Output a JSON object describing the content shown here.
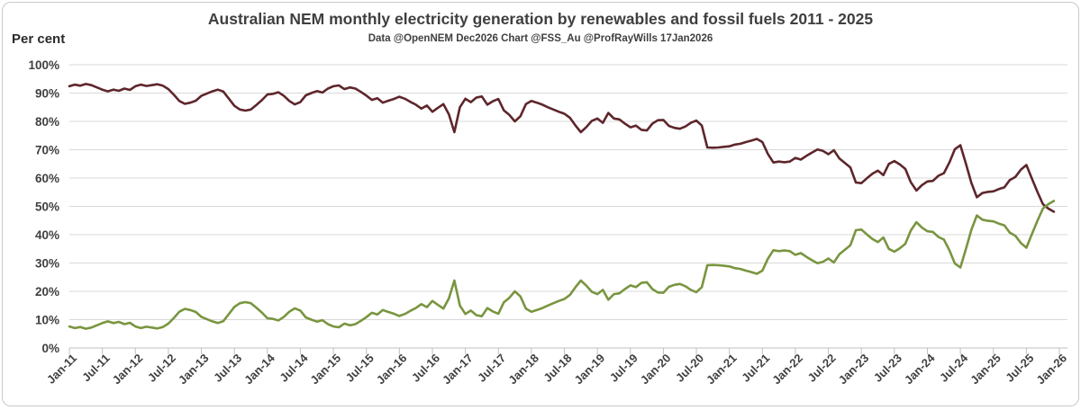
{
  "header": {
    "title": "Australian NEM monthly electricity generation by renewables and fossil fuels 2011 - 2025",
    "subtitle": "Data @OpenNEM Dec2026  Chart @FSS_Au @ProfRayWills 17Jan2026"
  },
  "axes": {
    "y_unit_label": "Per cent"
  },
  "colors": {
    "fossil_line": "#5e262b",
    "renewables_line": "#79953f",
    "gridline": "#d9d9d9",
    "axis_line": "#bfbfbf",
    "tick_label": "#404040"
  },
  "chart_data": {
    "type": "line",
    "title": "Australian NEM monthly electricity generation by renewables and fossil fuels 2011 - 2025",
    "subtitle": "Data @OpenNEM Dec2026  Chart @FSS_Au @ProfRayWills 17Jan2026",
    "ylabel": "Per cent",
    "ylim": [
      0,
      100
    ],
    "grid": "horizontal",
    "legend": "none",
    "x_start_month": "Jan-2011",
    "x_end_month": "Dec-2025",
    "x_tick_labels": [
      "Jan-11",
      "Jul-11",
      "Jan-12",
      "Jul-12",
      "Jan-13",
      "Jul-13",
      "Jan-14",
      "Jul-14",
      "Jan-15",
      "Jul-15",
      "Jan-16",
      "Jul-16",
      "Jan-17",
      "Jul-17",
      "Jan-18",
      "Jul-18",
      "Jan-19",
      "Jul-19",
      "Jan-20",
      "Jul-20",
      "Jan-21",
      "Jul-21",
      "Jan-22",
      "Jul-22",
      "Jan-23",
      "Jul-23",
      "Jan-24",
      "Jul-24",
      "Jan-25",
      "Jul-25",
      "Jan-26"
    ],
    "y_tick_labels": [
      "0%",
      "10%",
      "20%",
      "30%",
      "40%",
      "50%",
      "60%",
      "70%",
      "80%",
      "90%",
      "100%"
    ],
    "series": [
      {
        "name": "Fossil fuels",
        "color": "#5e262b",
        "values": [
          92.4,
          93.0,
          92.6,
          93.2,
          92.8,
          92.0,
          91.2,
          90.6,
          91.2,
          90.8,
          91.6,
          91.1,
          92.4,
          93.0,
          92.5,
          92.8,
          93.1,
          92.6,
          91.4,
          89.4,
          87.2,
          86.2,
          86.6,
          87.3,
          89.0,
          89.8,
          90.6,
          91.2,
          90.5,
          88.0,
          85.5,
          84.2,
          83.8,
          84.2,
          85.8,
          87.5,
          89.5,
          89.7,
          90.3,
          89.0,
          87.2,
          86.0,
          86.8,
          89.2,
          90.0,
          90.7,
          90.2,
          91.6,
          92.4,
          92.7,
          91.4,
          92.0,
          91.6,
          90.4,
          89.1,
          87.6,
          88.2,
          86.6,
          87.3,
          87.9,
          88.7,
          88.0,
          86.9,
          85.9,
          84.5,
          85.6,
          83.4,
          84.8,
          86.1,
          82.5,
          76.2,
          85.0,
          88.0,
          86.8,
          88.4,
          88.8,
          85.9,
          87.1,
          87.9,
          83.9,
          82.3,
          80.0,
          81.8,
          86.1,
          87.2,
          86.6,
          85.9,
          85.0,
          84.2,
          83.4,
          82.7,
          81.3,
          78.6,
          76.2,
          78.0,
          80.2,
          81.0,
          79.5,
          83.0,
          81.0,
          80.7,
          79.2,
          77.9,
          78.5,
          77.0,
          76.8,
          79.2,
          80.4,
          80.5,
          78.4,
          77.7,
          77.4,
          78.2,
          79.5,
          80.3,
          78.5,
          70.8,
          70.7,
          70.8,
          71.0,
          71.2,
          71.8,
          72.1,
          72.7,
          73.2,
          73.8,
          72.7,
          68.5,
          65.5,
          65.8,
          65.6,
          65.8,
          67.1,
          66.5,
          67.8,
          69.0,
          70.1,
          69.6,
          68.4,
          69.8,
          66.9,
          65.3,
          63.7,
          58.4,
          58.2,
          59.9,
          61.5,
          62.6,
          61.0,
          65.0,
          66.0,
          64.8,
          63.2,
          58.5,
          55.6,
          57.5,
          58.8,
          59.0,
          60.8,
          61.7,
          65.5,
          70.2,
          71.6,
          65.1,
          58.3,
          53.2,
          54.7,
          55.1,
          55.3,
          56.1,
          56.7,
          59.3,
          60.4,
          63.0,
          64.6,
          59.8,
          55.1,
          50.8,
          49.2,
          48.1
        ]
      },
      {
        "name": "Renewables",
        "color": "#79953f",
        "values": [
          7.6,
          7.0,
          7.4,
          6.8,
          7.2,
          8.0,
          8.8,
          9.4,
          8.8,
          9.2,
          8.4,
          8.9,
          7.6,
          7.0,
          7.5,
          7.2,
          6.9,
          7.4,
          8.6,
          10.6,
          12.8,
          13.8,
          13.4,
          12.7,
          11.0,
          10.2,
          9.4,
          8.8,
          9.5,
          12.0,
          14.5,
          15.8,
          16.2,
          15.8,
          14.2,
          12.5,
          10.5,
          10.3,
          9.7,
          11.0,
          12.8,
          14.0,
          13.2,
          10.8,
          10.0,
          9.3,
          9.8,
          8.4,
          7.6,
          7.3,
          8.6,
          8.0,
          8.4,
          9.6,
          10.9,
          12.4,
          11.8,
          13.4,
          12.7,
          12.1,
          11.3,
          12.0,
          13.1,
          14.1,
          15.5,
          14.4,
          16.6,
          15.2,
          13.9,
          17.5,
          23.8,
          15.0,
          12.0,
          13.2,
          11.6,
          11.2,
          14.1,
          12.9,
          12.1,
          16.1,
          17.7,
          20.0,
          18.2,
          13.9,
          12.8,
          13.4,
          14.1,
          15.0,
          15.8,
          16.6,
          17.3,
          18.7,
          21.4,
          23.8,
          22.0,
          19.8,
          19.0,
          20.5,
          17.0,
          19.0,
          19.3,
          20.8,
          22.1,
          21.5,
          23.0,
          23.2,
          20.8,
          19.6,
          19.5,
          21.6,
          22.3,
          22.6,
          21.8,
          20.5,
          19.7,
          21.5,
          29.2,
          29.3,
          29.2,
          29.0,
          28.8,
          28.2,
          27.9,
          27.3,
          26.8,
          26.2,
          27.3,
          31.5,
          34.5,
          34.2,
          34.4,
          34.2,
          32.9,
          33.5,
          32.2,
          31.0,
          29.9,
          30.4,
          31.6,
          30.2,
          33.1,
          34.7,
          36.3,
          41.6,
          41.8,
          40.1,
          38.5,
          37.4,
          39.0,
          35.0,
          34.0,
          35.2,
          36.8,
          41.5,
          44.4,
          42.5,
          41.2,
          41.0,
          39.2,
          38.3,
          34.5,
          29.8,
          28.4,
          34.9,
          41.7,
          46.8,
          45.3,
          44.9,
          44.7,
          43.9,
          43.3,
          40.7,
          39.6,
          37.0,
          35.4,
          40.2,
          44.9,
          49.2,
          50.8,
          51.9
        ]
      }
    ]
  }
}
